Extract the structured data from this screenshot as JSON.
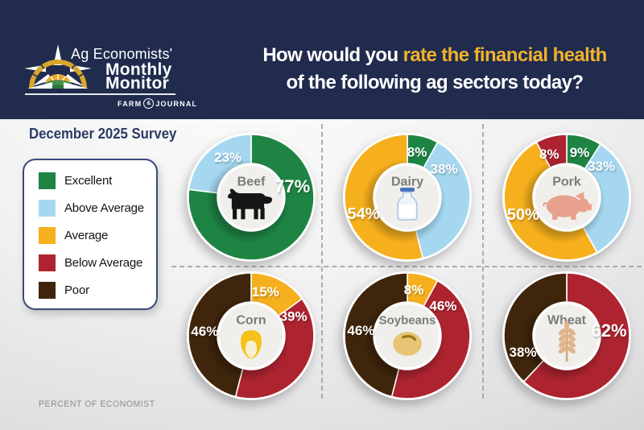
{
  "header": {
    "logo": {
      "script_line": "Ag Economists'",
      "bold_line1": "Monthly",
      "bold_line2": "Monitor",
      "brand_left": "FARM",
      "brand_mark": "&",
      "brand_right": "JOURNAL"
    },
    "question": {
      "part1": "How would you ",
      "highlight": "rate the financial health",
      "line2": "of the following ag sectors today?"
    }
  },
  "survey_label": "December 2025 Survey",
  "legend": {
    "items": [
      {
        "label": "Excellent",
        "color": "#1e8444"
      },
      {
        "label": "Above Average",
        "color": "#a5d8f0"
      },
      {
        "label": "Average",
        "color": "#f6b01d"
      },
      {
        "label": "Below Average",
        "color": "#ad2430"
      },
      {
        "label": "Poor",
        "color": "#3f250b"
      }
    ]
  },
  "footer_note": "PERCENT OF ECONOMIST",
  "colors": {
    "navy": "#202b4d",
    "gold_accent": "#f0b22d"
  },
  "chart_data": {
    "type": "pie",
    "subtype": "donut-grid",
    "unit": "% of economists",
    "value_suffix": "%",
    "start_angle_deg": 0,
    "direction": "clockwise",
    "charts": [
      {
        "name": "Beef",
        "icon": "cow-icon",
        "segments": [
          {
            "rating": "Excellent",
            "value": 77,
            "label_angle": 75
          },
          {
            "rating": "Above Average",
            "value": 23,
            "label_angle": 330
          }
        ]
      },
      {
        "name": "Dairy",
        "icon": "milk-bottle-icon",
        "segments": [
          {
            "rating": "Excellent",
            "value": 8,
            "label_angle": 12
          },
          {
            "rating": "Above Average",
            "value": 38,
            "label_angle": 52
          },
          {
            "rating": "Average",
            "value": 54,
            "label_angle": 250
          }
        ]
      },
      {
        "name": "Pork",
        "icon": "pig-icon",
        "segments": [
          {
            "rating": "Excellent",
            "value": 9,
            "label_angle": 16
          },
          {
            "rating": "Above Average",
            "value": 33,
            "label_angle": 48
          },
          {
            "rating": "Average",
            "value": 50,
            "label_angle": 249
          },
          {
            "rating": "Below Average",
            "value": 8,
            "label_angle": 338
          }
        ]
      },
      {
        "name": "Corn",
        "icon": "corn-icon",
        "segments": [
          {
            "rating": "Average",
            "value": 15,
            "label_angle": 18
          },
          {
            "rating": "Below Average",
            "value": 39,
            "label_angle": 65
          },
          {
            "rating": "Poor",
            "value": 46,
            "label_angle": 276
          }
        ]
      },
      {
        "name": "Soybeans",
        "icon": "soybean-icon",
        "segments": [
          {
            "rating": "Average",
            "value": 8,
            "label_angle": 8
          },
          {
            "rating": "Below Average",
            "value": 46,
            "label_angle": 50
          },
          {
            "rating": "Poor",
            "value": 46,
            "label_angle": 277
          }
        ]
      },
      {
        "name": "Wheat",
        "icon": "wheat-icon",
        "segments": [
          {
            "rating": "Below Average",
            "value": 62,
            "label_angle": 83
          },
          {
            "rating": "Poor",
            "value": 38,
            "label_angle": 250
          }
        ]
      }
    ]
  }
}
